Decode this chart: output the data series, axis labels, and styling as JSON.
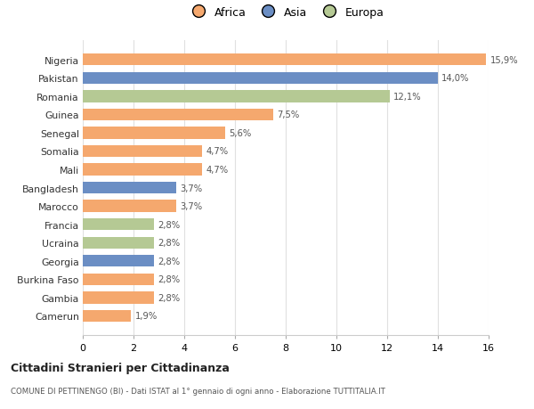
{
  "categories": [
    "Nigeria",
    "Pakistan",
    "Romania",
    "Guinea",
    "Senegal",
    "Somalia",
    "Mali",
    "Bangladesh",
    "Marocco",
    "Francia",
    "Ucraina",
    "Georgia",
    "Burkina Faso",
    "Gambia",
    "Camerun"
  ],
  "values": [
    15.9,
    14.0,
    12.1,
    7.5,
    5.6,
    4.7,
    4.7,
    3.7,
    3.7,
    2.8,
    2.8,
    2.8,
    2.8,
    2.8,
    1.9
  ],
  "labels": [
    "15,9%",
    "14,0%",
    "12,1%",
    "7,5%",
    "5,6%",
    "4,7%",
    "4,7%",
    "3,7%",
    "3,7%",
    "2,8%",
    "2,8%",
    "2,8%",
    "2,8%",
    "2,8%",
    "1,9%"
  ],
  "continents": [
    "Africa",
    "Asia",
    "Europa",
    "Africa",
    "Africa",
    "Africa",
    "Africa",
    "Asia",
    "Africa",
    "Europa",
    "Europa",
    "Asia",
    "Africa",
    "Africa",
    "Africa"
  ],
  "colors": {
    "Africa": "#F5A86E",
    "Asia": "#6B8EC4",
    "Europa": "#B5C994"
  },
  "xlim": [
    0,
    16
  ],
  "xticks": [
    0,
    2,
    4,
    6,
    8,
    10,
    12,
    14,
    16
  ],
  "title": "Cittadini Stranieri per Cittadinanza",
  "subtitle": "COMUNE DI PETTINENGO (BI) - Dati ISTAT al 1° gennaio di ogni anno - Elaborazione TUTTITALIA.IT",
  "background_color": "#ffffff",
  "grid_color": "#e0e0e0",
  "bar_height": 0.65
}
